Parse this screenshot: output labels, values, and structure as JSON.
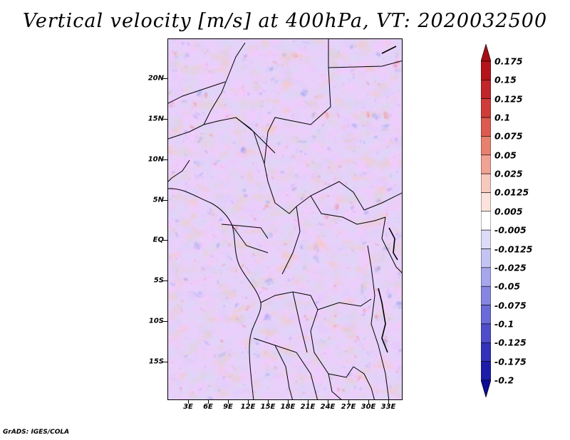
{
  "title": "Vertical velocity [m/s] at 400hPa, VT: 2020032500",
  "credit": "GrADS: IGES/COLA",
  "map": {
    "lat_ticks": [
      "20N",
      "15N",
      "10N",
      "5N",
      "EQ",
      "5S",
      "10S",
      "15S"
    ],
    "lon_ticks": [
      "3E",
      "6E",
      "9E",
      "12E",
      "15E",
      "18E",
      "21E",
      "24E",
      "27E",
      "30E",
      "33E"
    ]
  },
  "colorbar": {
    "labels": [
      "0.175",
      "0.15",
      "0.125",
      "0.1",
      "0.075",
      "0.05",
      "0.025",
      "0.0125",
      "0.005",
      "-0.005",
      "-0.0125",
      "-0.025",
      "-0.05",
      "-0.075",
      "-0.1",
      "-0.125",
      "-0.175",
      "-0.2"
    ],
    "colors": [
      "#a50f15",
      "#b3141a",
      "#c0262a",
      "#cf3c3a",
      "#dc5a50",
      "#e7806e",
      "#f0a294",
      "#f7c8be",
      "#fbe3dc",
      "#ffffff",
      "#dcdcf8",
      "#c4c4f2",
      "#a6a6ec",
      "#8686e2",
      "#6a6ad8",
      "#4e4ecb",
      "#3232bb",
      "#1c1ca8",
      "#0c0c94"
    ]
  }
}
